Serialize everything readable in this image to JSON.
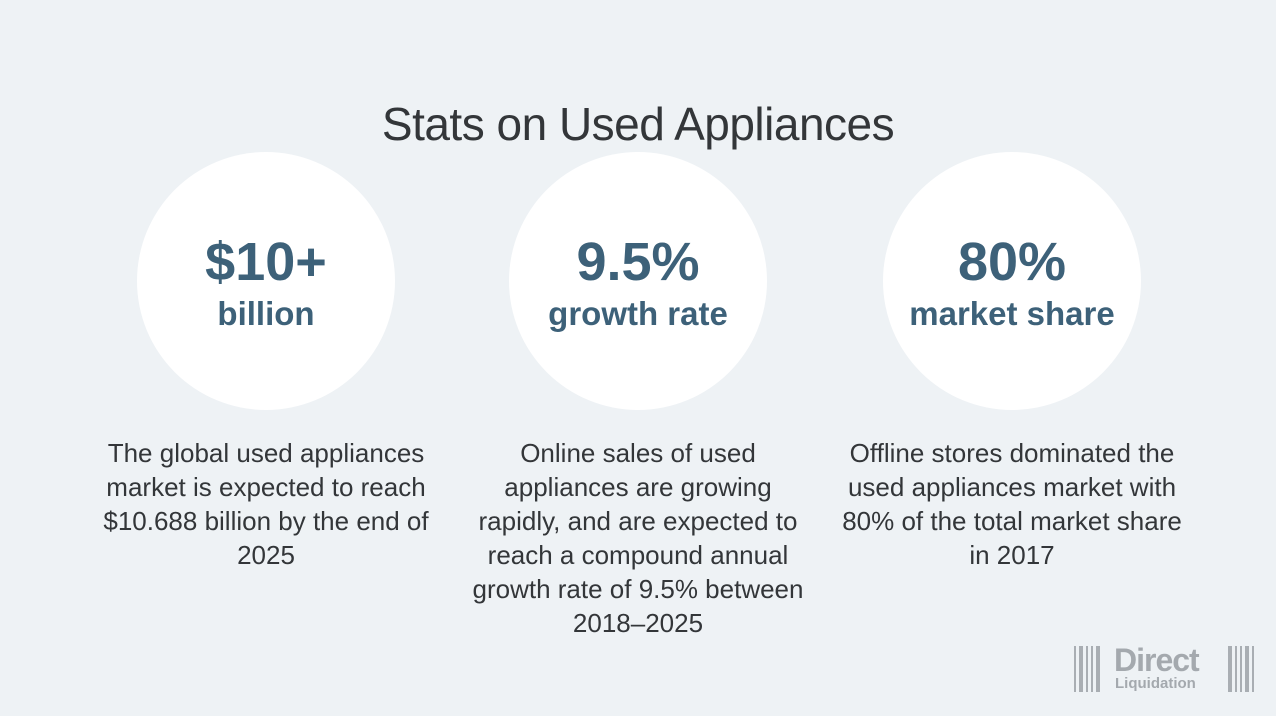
{
  "title": "Stats on Used Appliances",
  "stats": [
    {
      "value": "$10+",
      "label": "billion",
      "description": "The global used appliances market is expected to reach $10.688 billion by the end of 2025"
    },
    {
      "value": "9.5%",
      "label": "growth rate",
      "description": "Online sales of used appliances are growing rapidly, and are expected to reach a compound annual growth rate of 9.5% between 2018–2025"
    },
    {
      "value": "80%",
      "label": "market share",
      "description": "Offline stores dominated the used appliances market with 80% of the total market share in 2017"
    }
  ],
  "logo": {
    "line1": "Direct",
    "line2": "Liquidation",
    "icon": "barcode-icon"
  },
  "colors": {
    "background": "#eef2f5",
    "accent": "#3d6179",
    "text": "#333639",
    "logo": "#a4a9ae"
  }
}
